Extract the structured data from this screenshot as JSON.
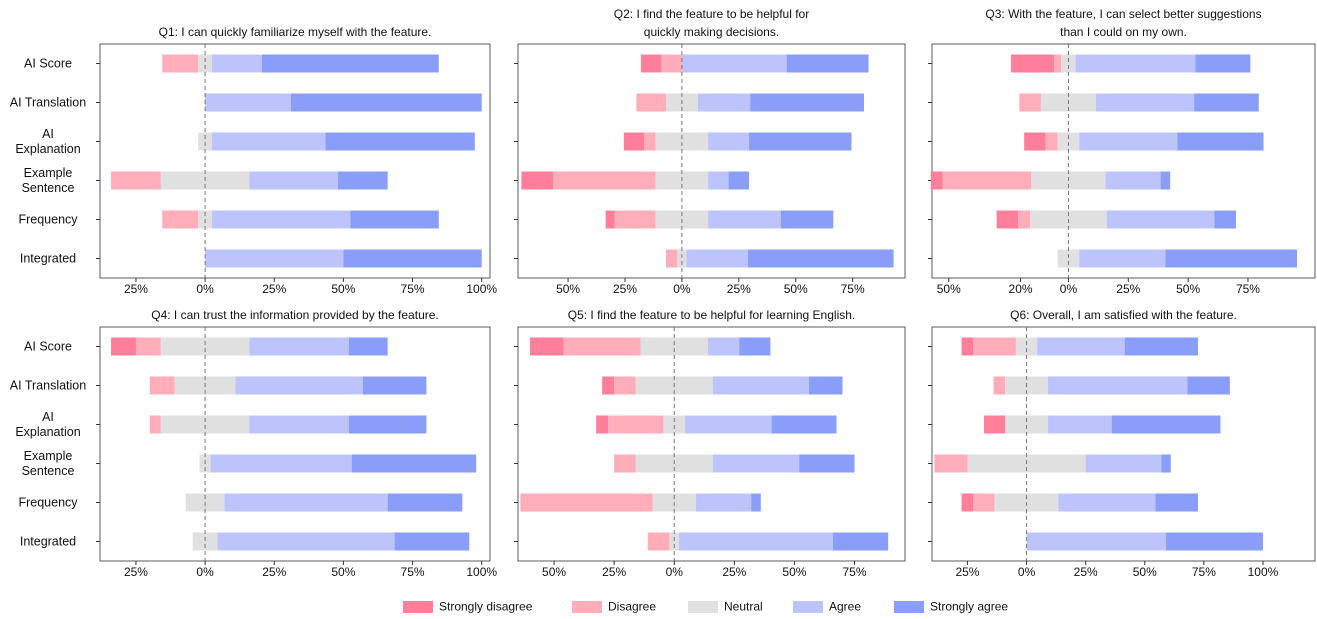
{
  "chart_data": [
    {
      "type": "diverging_bar",
      "title": [
        "Q1: I can quickly familiarize myself with the feature."
      ],
      "categories": [
        "AI Score",
        "AI Translation",
        "AI Explanation",
        "Example Sentence",
        "Frequency",
        "Integrated"
      ],
      "xlim": [
        -38,
        103
      ],
      "xticks": [
        {
          "value": -25,
          "label": "25%"
        },
        {
          "value": 0,
          "label": "0%"
        },
        {
          "value": 25,
          "label": "25%"
        },
        {
          "value": 50,
          "label": "50%"
        },
        {
          "value": 75,
          "label": "75%"
        },
        {
          "value": 100,
          "label": "100%"
        }
      ],
      "series": [
        {
          "name": "Strongly disagree",
          "color": "#ff7f9a",
          "values": [
            0,
            0,
            0,
            0,
            0,
            0
          ]
        },
        {
          "name": "Disagree",
          "color": "#ffadbb",
          "values": [
            13,
            0,
            0,
            18,
            13,
            0
          ]
        },
        {
          "name": "Neutral",
          "color": "#e0e0e0",
          "values": [
            5,
            0,
            5,
            32,
            5,
            0
          ]
        },
        {
          "name": "Agree",
          "color": "#bcc4fb",
          "values": [
            18,
            31,
            41,
            32,
            50,
            50
          ]
        },
        {
          "name": "Strongly agree",
          "color": "#8a9ef9",
          "values": [
            64,
            69,
            54,
            18,
            32,
            50
          ]
        }
      ]
    },
    {
      "type": "diverging_bar",
      "title": [
        "Q2: I find the feature to be helpful for",
        "quickly making decisions."
      ],
      "xlim": [
        -72,
        98
      ],
      "xticks": [
        {
          "value": -50,
          "label": "50%"
        },
        {
          "value": -25,
          "label": "25%"
        },
        {
          "value": 0,
          "label": "0%"
        },
        {
          "value": 25,
          "label": "25%"
        },
        {
          "value": 50,
          "label": "50%"
        },
        {
          "value": 75,
          "label": "75%"
        }
      ],
      "series": [
        {
          "name": "Strongly disagree",
          "color": "#ff7f9a",
          "values": [
            9,
            0,
            9,
            14,
            4,
            0
          ]
        },
        {
          "name": "Disagree",
          "color": "#ffadbb",
          "values": [
            9,
            13,
            5,
            45,
            18,
            5
          ]
        },
        {
          "name": "Neutral",
          "color": "#e0e0e0",
          "values": [
            0,
            14,
            23,
            23,
            23,
            4
          ]
        },
        {
          "name": "Agree",
          "color": "#bcc4fb",
          "values": [
            46,
            23,
            18,
            9,
            32,
            27
          ]
        },
        {
          "name": "Strongly agree",
          "color": "#8a9ef9",
          "values": [
            36,
            50,
            45,
            9,
            23,
            64
          ]
        }
      ]
    },
    {
      "type": "diverging_bar",
      "title": [
        "Q3: With the feature, I can select better suggestions",
        "than I could on my own."
      ],
      "xlim": [
        -57,
        103
      ],
      "xticks": [
        {
          "value": -50,
          "label": "50%"
        },
        {
          "value": -20,
          "label": "20%"
        },
        {
          "value": 0,
          "label": "0%"
        },
        {
          "value": 25,
          "label": "25%"
        },
        {
          "value": 50,
          "label": "50%"
        },
        {
          "value": 75,
          "label": "75%"
        }
      ],
      "series": [
        {
          "name": "Strongly disagree",
          "color": "#ff7f9a",
          "values": [
            18,
            0,
            9,
            5,
            9,
            0
          ]
        },
        {
          "name": "Disagree",
          "color": "#ffadbb",
          "values": [
            3,
            9,
            5,
            37,
            5,
            0
          ]
        },
        {
          "name": "Neutral",
          "color": "#e0e0e0",
          "values": [
            6,
            23,
            9,
            31,
            32,
            9
          ]
        },
        {
          "name": "Agree",
          "color": "#bcc4fb",
          "values": [
            50,
            41,
            41,
            23,
            45,
            36
          ]
        },
        {
          "name": "Strongly agree",
          "color": "#8a9ef9",
          "values": [
            23,
            27,
            36,
            4,
            9,
            55
          ]
        }
      ]
    },
    {
      "type": "diverging_bar",
      "title": [
        "Q4: I can trust the information provided by the feature."
      ],
      "categories": [
        "AI Score",
        "AI Translation",
        "AI Explanation",
        "Example Sentence",
        "Frequency",
        "Integrated"
      ],
      "xlim": [
        -38,
        103
      ],
      "xticks": [
        {
          "value": -25,
          "label": "25%"
        },
        {
          "value": 0,
          "label": "0%"
        },
        {
          "value": 25,
          "label": "25%"
        },
        {
          "value": 50,
          "label": "50%"
        },
        {
          "value": 75,
          "label": "75%"
        },
        {
          "value": 100,
          "label": "100%"
        }
      ],
      "series": [
        {
          "name": "Strongly disagree",
          "color": "#ff7f9a",
          "values": [
            9,
            0,
            0,
            0,
            0,
            0
          ]
        },
        {
          "name": "Disagree",
          "color": "#ffadbb",
          "values": [
            9,
            9,
            4,
            0,
            0,
            0
          ]
        },
        {
          "name": "Neutral",
          "color": "#e0e0e0",
          "values": [
            32,
            22,
            32,
            4,
            14,
            9
          ]
        },
        {
          "name": "Agree",
          "color": "#bcc4fb",
          "values": [
            36,
            46,
            36,
            51,
            59,
            64
          ]
        },
        {
          "name": "Strongly agree",
          "color": "#8a9ef9",
          "values": [
            14,
            23,
            28,
            45,
            27,
            27
          ]
        }
      ]
    },
    {
      "type": "diverging_bar",
      "title": [
        "Q5: I find the feature to be helpful for learning English."
      ],
      "xlim": [
        -65,
        96
      ],
      "xticks": [
        {
          "value": -50,
          "label": "50%"
        },
        {
          "value": -25,
          "label": "25%"
        },
        {
          "value": 0,
          "label": "0%"
        },
        {
          "value": 25,
          "label": "25%"
        },
        {
          "value": 50,
          "label": "50%"
        },
        {
          "value": 75,
          "label": "75%"
        }
      ],
      "series": [
        {
          "name": "Strongly disagree",
          "color": "#ff7f9a",
          "values": [
            14,
            5,
            5,
            0,
            0,
            0
          ]
        },
        {
          "name": "Disagree",
          "color": "#ffadbb",
          "values": [
            32,
            9,
            23,
            9,
            55,
            9
          ]
        },
        {
          "name": "Neutral",
          "color": "#e0e0e0",
          "values": [
            28,
            32,
            9,
            32,
            18,
            4
          ]
        },
        {
          "name": "Agree",
          "color": "#bcc4fb",
          "values": [
            13,
            40,
            36,
            36,
            23,
            64
          ]
        },
        {
          "name": "Strongly agree",
          "color": "#8a9ef9",
          "values": [
            13,
            14,
            27,
            23,
            4,
            23
          ]
        }
      ]
    },
    {
      "type": "diverging_bar",
      "title": [
        "Q6: Overall, I am satisfied with the feature."
      ],
      "xlim": [
        -40,
        122
      ],
      "xticks": [
        {
          "value": -25,
          "label": "25%"
        },
        {
          "value": 0,
          "label": "0%"
        },
        {
          "value": 25,
          "label": "25%"
        },
        {
          "value": 50,
          "label": "50%"
        },
        {
          "value": 75,
          "label": "75%"
        },
        {
          "value": 100,
          "label": "100%"
        }
      ],
      "series": [
        {
          "name": "Strongly disagree",
          "color": "#ff7f9a",
          "values": [
            5,
            0,
            9,
            0,
            5,
            0
          ]
        },
        {
          "name": "Disagree",
          "color": "#ffadbb",
          "values": [
            18,
            5,
            0,
            14,
            9,
            0
          ]
        },
        {
          "name": "Neutral",
          "color": "#e0e0e0",
          "values": [
            9,
            18,
            18,
            50,
            27,
            0
          ]
        },
        {
          "name": "Agree",
          "color": "#bcc4fb",
          "values": [
            37,
            59,
            27,
            32,
            41,
            59
          ]
        },
        {
          "name": "Strongly agree",
          "color": "#8a9ef9",
          "values": [
            31,
            18,
            46,
            4,
            18,
            41
          ]
        }
      ]
    }
  ]
}
